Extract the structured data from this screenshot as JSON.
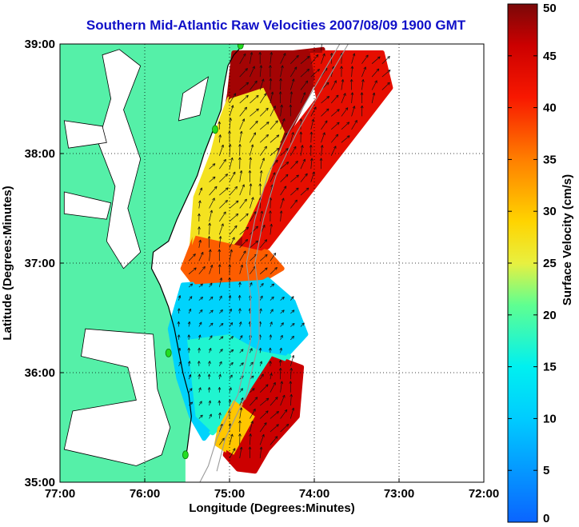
{
  "title": "Southern Mid-Atlantic Raw Velocities 2007/08/09 1900 GMT",
  "colors": {
    "land": "#55f0a8",
    "water": "#ffffff",
    "title": "#1010c8",
    "coast": "#000000",
    "station": "#22dd22"
  },
  "chart_data": {
    "type": "heatmap",
    "title": "Southern Mid-Atlantic Raw Velocities 2007/08/09 1900 GMT",
    "xlabel": "Longitude (Degrees:Minutes)",
    "ylabel": "Latitude (Degrees:Minutes)",
    "colorbar_label": "Surface Velocity (cm/s)",
    "xlim": [
      -77,
      -72
    ],
    "ylim": [
      35,
      39
    ],
    "x_ticks": [
      {
        "value": -77,
        "label": "77:00"
      },
      {
        "value": -76,
        "label": "76:00"
      },
      {
        "value": -75,
        "label": "75:00"
      },
      {
        "value": -74,
        "label": "74:00"
      },
      {
        "value": -73,
        "label": "73:00"
      },
      {
        "value": -72,
        "label": "72:00"
      }
    ],
    "y_ticks": [
      {
        "value": 35,
        "label": "35:00"
      },
      {
        "value": 36,
        "label": "36:00"
      },
      {
        "value": 37,
        "label": "37:00"
      },
      {
        "value": 38,
        "label": "38:00"
      },
      {
        "value": 39,
        "label": "39:00"
      }
    ],
    "colorbar": {
      "min": 0,
      "max": 50,
      "ticks": [
        0,
        5,
        10,
        15,
        20,
        25,
        30,
        35,
        40,
        45,
        50
      ]
    },
    "grid": "dotted",
    "coastline": [
      [
        -74.83,
        39.0
      ],
      [
        -74.95,
        38.9
      ],
      [
        -75.02,
        38.8
      ],
      [
        -75.07,
        38.6
      ],
      [
        -75.1,
        38.4
      ],
      [
        -75.2,
        38.2
      ],
      [
        -75.3,
        38.0
      ],
      [
        -75.38,
        37.8
      ],
      [
        -75.5,
        37.6
      ],
      [
        -75.62,
        37.4
      ],
      [
        -75.72,
        37.2
      ],
      [
        -75.9,
        37.1
      ],
      [
        -75.92,
        36.95
      ],
      [
        -75.82,
        36.8
      ],
      [
        -75.72,
        36.6
      ],
      [
        -75.65,
        36.4
      ],
      [
        -75.6,
        36.2
      ],
      [
        -75.55,
        36.0
      ],
      [
        -75.48,
        35.8
      ],
      [
        -75.45,
        35.6
      ],
      [
        -75.5,
        35.3
      ],
      [
        -75.52,
        35.23
      ]
    ],
    "stations": [
      {
        "lon": -74.87,
        "lat": 38.99
      },
      {
        "lon": -75.17,
        "lat": 38.22
      },
      {
        "lon": -75.72,
        "lat": 36.18
      },
      {
        "lon": -75.52,
        "lat": 35.25
      }
    ],
    "velocity_regions": [
      {
        "name": "north",
        "speed": 48,
        "polygon": [
          [
            -74.95,
            38.92
          ],
          [
            -74.25,
            38.92
          ],
          [
            -73.9,
            38.95
          ],
          [
            -73.95,
            38.75
          ],
          [
            -74.3,
            38.2
          ],
          [
            -74.6,
            37.7
          ],
          [
            -74.72,
            37.25
          ],
          [
            -74.85,
            37.0
          ],
          [
            -75.35,
            37.0
          ],
          [
            -75.35,
            37.3
          ],
          [
            -75.25,
            37.65
          ],
          [
            -75.1,
            38.1
          ],
          [
            -75.0,
            38.55
          ]
        ]
      },
      {
        "name": "north-east",
        "speed": 43,
        "polygon": [
          [
            -74.05,
            38.92
          ],
          [
            -73.2,
            38.92
          ],
          [
            -73.1,
            38.6
          ],
          [
            -73.45,
            38.25
          ],
          [
            -73.8,
            37.9
          ],
          [
            -74.1,
            37.6
          ],
          [
            -74.3,
            37.4
          ],
          [
            -74.55,
            37.15
          ],
          [
            -74.85,
            37.0
          ],
          [
            -74.85,
            37.35
          ],
          [
            -74.6,
            37.75
          ],
          [
            -74.3,
            38.15
          ],
          [
            -73.95,
            38.5
          ]
        ]
      },
      {
        "name": "band-yellow",
        "speed": 27,
        "polygon": [
          [
            -75.0,
            38.5
          ],
          [
            -74.6,
            38.6
          ],
          [
            -74.35,
            38.2
          ],
          [
            -74.55,
            37.75
          ],
          [
            -74.85,
            37.25
          ],
          [
            -75.2,
            36.95
          ],
          [
            -75.45,
            37.1
          ],
          [
            -75.4,
            37.6
          ],
          [
            -75.2,
            38.0
          ],
          [
            -75.1,
            38.3
          ]
        ]
      },
      {
        "name": "south-center",
        "speed": 37,
        "polygon": [
          [
            -75.4,
            37.25
          ],
          [
            -74.55,
            37.1
          ],
          [
            -74.38,
            36.95
          ],
          [
            -74.6,
            36.85
          ],
          [
            -75.0,
            36.75
          ],
          [
            -75.4,
            36.8
          ],
          [
            -75.55,
            36.95
          ]
        ]
      },
      {
        "name": "shelf-slow",
        "speed": 11,
        "polygon": [
          [
            -75.55,
            36.8
          ],
          [
            -74.55,
            36.85
          ],
          [
            -74.25,
            36.65
          ],
          [
            -74.1,
            36.35
          ],
          [
            -74.4,
            36.1
          ],
          [
            -74.7,
            35.95
          ],
          [
            -75.0,
            35.7
          ],
          [
            -75.3,
            35.4
          ],
          [
            -75.45,
            35.6
          ],
          [
            -75.6,
            35.95
          ],
          [
            -75.7,
            36.4
          ]
        ]
      },
      {
        "name": "shelf-fast",
        "speed": 17,
        "polygon": [
          [
            -75.5,
            36.3
          ],
          [
            -75.0,
            36.35
          ],
          [
            -74.65,
            36.2
          ],
          [
            -74.3,
            36.15
          ],
          [
            -74.5,
            35.95
          ],
          [
            -74.9,
            35.7
          ],
          [
            -75.2,
            35.45
          ],
          [
            -75.4,
            35.6
          ]
        ]
      },
      {
        "name": "gulf-stream",
        "speed": 46,
        "polygon": [
          [
            -74.5,
            36.15
          ],
          [
            -74.15,
            36.05
          ],
          [
            -74.2,
            35.6
          ],
          [
            -74.55,
            35.3
          ],
          [
            -74.7,
            35.1
          ],
          [
            -74.9,
            35.12
          ],
          [
            -75.05,
            35.25
          ],
          [
            -74.95,
            35.55
          ],
          [
            -74.75,
            35.85
          ]
        ]
      },
      {
        "name": "gulf-edge",
        "speed": 30,
        "polygon": [
          [
            -74.95,
            35.75
          ],
          [
            -74.7,
            35.6
          ],
          [
            -74.95,
            35.25
          ],
          [
            -75.15,
            35.35
          ],
          [
            -75.1,
            35.55
          ]
        ]
      }
    ],
    "vector_field": {
      "direction_deg": 25,
      "spacing_deg": 0.12
    }
  }
}
